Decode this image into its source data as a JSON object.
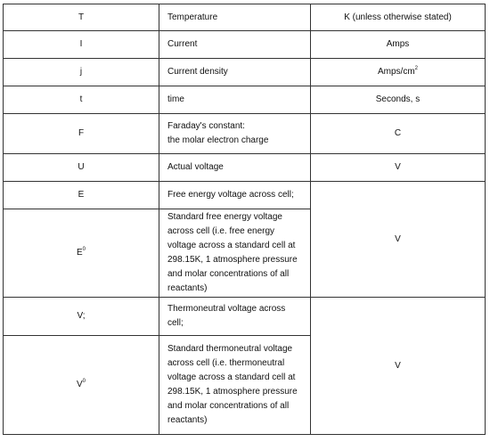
{
  "rows": [
    {
      "symbol": "T",
      "definition": "Temperature",
      "unit": "K (unless otherwise stated)"
    },
    {
      "symbol": "I",
      "definition": "Current",
      "unit": "Amps"
    },
    {
      "symbol": "j",
      "definition": "Current density",
      "unit_base": "Amps/cm",
      "unit_sup": "2"
    },
    {
      "symbol": "t",
      "definition": "time",
      "unit": "Seconds, s"
    },
    {
      "symbol": "F",
      "definition_line1": "Faraday's constant:",
      "definition_line2": "the molar electron charge",
      "unit": "C"
    },
    {
      "symbol": "U",
      "definition": "Actual voltage",
      "unit": "V"
    },
    {
      "symbol": "E",
      "definition": "Free energy voltage across cell;",
      "unit": "V"
    },
    {
      "symbol_base": "E",
      "symbol_sup": "0",
      "definition": "Standard free energy voltage across cell (i.e. free energy voltage across a standard cell at 298.15K, 1 atmosphere pressure and molar concentrations of all reactants)"
    },
    {
      "symbol": "V;",
      "definition": "Thermoneutral voltage across cell;",
      "unit": "V"
    },
    {
      "symbol_base": "V",
      "symbol_sup": "0",
      "definition": "Standard thermoneutral voltage across cell (i.e. thermoneutral voltage across a standard cell at 298.15K, 1 atmosphere pressure and molar concentrations of all reactants)"
    }
  ]
}
